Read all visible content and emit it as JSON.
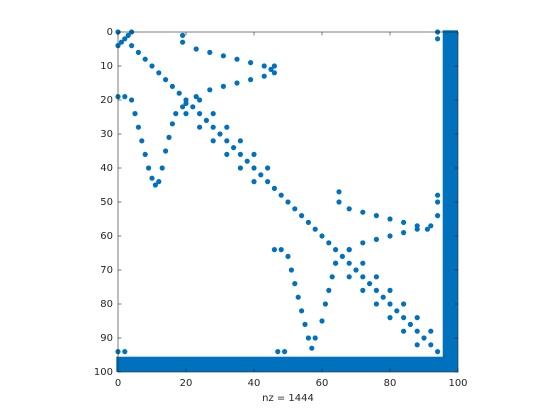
{
  "chart_data": {
    "type": "spy",
    "xlabel": "nz = 1444",
    "color": "#0072BD",
    "xlim": [
      0,
      100
    ],
    "ylim": [
      0,
      100
    ],
    "xticks": [
      0,
      20,
      40,
      60,
      80,
      100
    ],
    "yticks": [
      0,
      10,
      20,
      30,
      40,
      50,
      60,
      70,
      80,
      90,
      100
    ],
    "x": [
      0,
      2,
      4,
      6,
      8,
      10,
      12,
      14,
      16,
      18,
      20,
      22,
      24,
      26,
      28,
      30,
      32,
      34,
      36,
      38,
      40,
      42,
      44,
      46,
      48,
      50,
      52,
      54,
      56,
      58,
      60,
      62,
      64,
      66,
      68,
      70,
      72,
      74,
      76,
      78,
      80,
      82,
      84,
      86,
      88,
      90,
      92,
      94,
      0,
      4,
      1,
      3,
      20,
      24,
      24,
      28,
      28,
      32,
      32,
      36,
      36,
      40,
      40,
      44,
      64,
      68,
      68,
      72,
      72,
      76,
      76,
      80,
      80,
      84,
      84,
      88,
      88,
      92,
      19,
      19,
      23,
      27,
      31,
      35,
      39,
      43,
      45,
      46,
      20,
      23,
      27,
      31,
      35,
      39,
      43,
      46,
      0,
      2,
      4,
      5,
      6,
      7,
      8,
      9,
      10,
      11,
      12,
      13,
      14,
      15,
      16,
      17,
      19,
      65,
      65,
      68,
      72,
      76,
      80,
      84,
      88,
      92,
      68,
      72,
      76,
      80,
      84,
      88,
      91,
      46,
      48,
      50,
      51,
      52,
      53,
      54,
      55,
      56,
      57,
      58,
      60,
      61,
      62,
      63,
      64,
      94,
      94,
      94,
      94,
      94,
      0,
      2,
      47,
      49
    ],
    "y": [
      0,
      2,
      4,
      6,
      8,
      10,
      12,
      14,
      16,
      18,
      20,
      22,
      24,
      26,
      28,
      30,
      32,
      34,
      36,
      38,
      40,
      42,
      44,
      46,
      48,
      50,
      52,
      54,
      56,
      58,
      60,
      62,
      64,
      66,
      68,
      70,
      72,
      74,
      76,
      78,
      80,
      82,
      84,
      86,
      88,
      90,
      92,
      94,
      4,
      0,
      3,
      1,
      24,
      20,
      28,
      24,
      32,
      28,
      36,
      32,
      40,
      36,
      44,
      40,
      68,
      64,
      72,
      68,
      76,
      72,
      80,
      76,
      84,
      80,
      88,
      84,
      92,
      88,
      1,
      3,
      5,
      6,
      7,
      8,
      9,
      10,
      11,
      10,
      21,
      19,
      17,
      16,
      15,
      14,
      13,
      12,
      19,
      19,
      20,
      24,
      28,
      32,
      36,
      40,
      43,
      45,
      44,
      40,
      35,
      31,
      27,
      24,
      22,
      47,
      50,
      52,
      53,
      54,
      55,
      56,
      57,
      57,
      64,
      62,
      61,
      60,
      59,
      58,
      58,
      64,
      64,
      66,
      70,
      74,
      78,
      82,
      86,
      90,
      93,
      90,
      85,
      80,
      76,
      72,
      68,
      0,
      2,
      48,
      50,
      54,
      94,
      94,
      94,
      94
    ],
    "blocks": [
      {
        "x": [
          96,
          100
        ],
        "y": [
          0,
          100
        ]
      },
      {
        "x": [
          0,
          100
        ],
        "y": [
          96,
          100
        ]
      }
    ]
  }
}
